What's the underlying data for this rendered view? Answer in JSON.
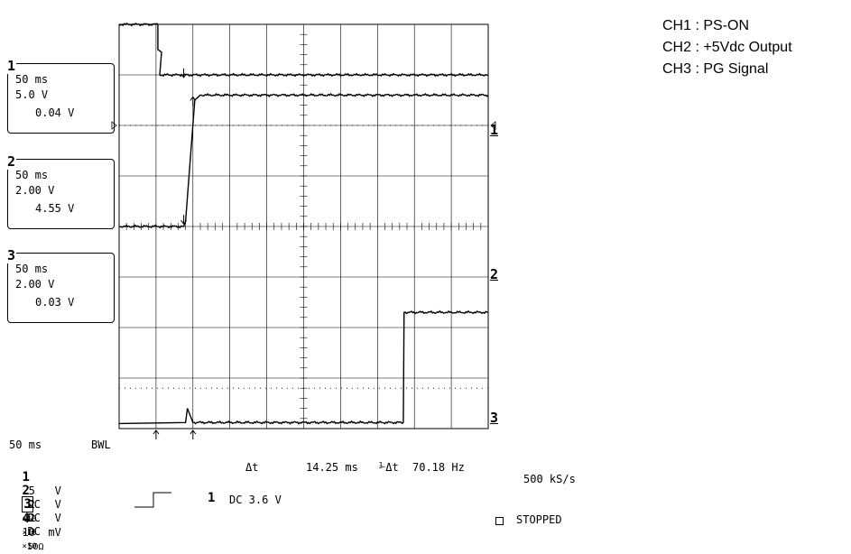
{
  "chart_data": {
    "type": "line",
    "title": "",
    "time_per_div": "50 ms",
    "divisions_x": 10,
    "divisions_y": 8,
    "legend": [
      {
        "channel": "CH1",
        "label": "CH1 : PS-ON"
      },
      {
        "channel": "CH2",
        "label": "CH2 : +5Vdc Output"
      },
      {
        "channel": "CH3",
        "label": "CH3 : PG Signal"
      }
    ],
    "channel_boxes": [
      {
        "number": "1",
        "timebase": "50 ms",
        "volts_per_div": "5.0 V",
        "offset": "0.04 V"
      },
      {
        "number": "2",
        "timebase": "50 ms",
        "volts_per_div": "2.00 V",
        "offset": "4.55 V"
      },
      {
        "number": "3",
        "timebase": "50 ms",
        "volts_per_div": "2.00 V",
        "offset": "0.03 V"
      }
    ],
    "markers": {
      "right": [
        "1",
        "2",
        "3"
      ]
    },
    "series": [
      {
        "name": "CH1",
        "points": [
          [
            0,
            8.0
          ],
          [
            1.05,
            8.0
          ],
          [
            1.05,
            7.5
          ],
          [
            1.15,
            7.45
          ],
          [
            1.1,
            7.0
          ],
          [
            10,
            7.0
          ]
        ]
      },
      {
        "name": "CH2",
        "points": [
          [
            0,
            4.0
          ],
          [
            1.75,
            4.0
          ],
          [
            1.8,
            4.1
          ],
          [
            2.05,
            6.5
          ],
          [
            2.2,
            6.6
          ],
          [
            10,
            6.6
          ]
        ]
      },
      {
        "name": "CH3",
        "points": [
          [
            0,
            0.1
          ],
          [
            1.8,
            0.12
          ],
          [
            1.85,
            0.4
          ],
          [
            2.0,
            0.12
          ],
          [
            7.7,
            0.12
          ],
          [
            7.72,
            2.3
          ],
          [
            10,
            2.3
          ]
        ]
      }
    ],
    "delta_t": "14.25 ms",
    "inverse_delta_t": "70.18 Hz",
    "sample_rate": "500 kS/s",
    "status": "STOPPED"
  },
  "bottom": {
    "timebase": "50 ms",
    "bwl": "BWL",
    "channels": [
      {
        "num": "1",
        "scale": ".5   V",
        "coupling": "DC",
        "probe": "×10"
      },
      {
        "num": "2",
        "scale": ".2   V",
        "coupling": "DC",
        "probe": "×10"
      },
      {
        "num": "3",
        "scale": ".2   V",
        "coupling": "DC",
        "probe": "×10"
      },
      {
        "num": "4",
        "scale": "10  mV",
        "coupling": "50Ω",
        "probe": ""
      }
    ],
    "delta_t_label": "Δt",
    "delta_t_value": "14.25 ms",
    "inv_label": "⅟Δt",
    "inv_value": "70.18 Hz",
    "sample_rate": "500 kS/s",
    "trigger_channel": "1",
    "trigger_value": "DC 3.6 V",
    "status": "STOPPED"
  }
}
